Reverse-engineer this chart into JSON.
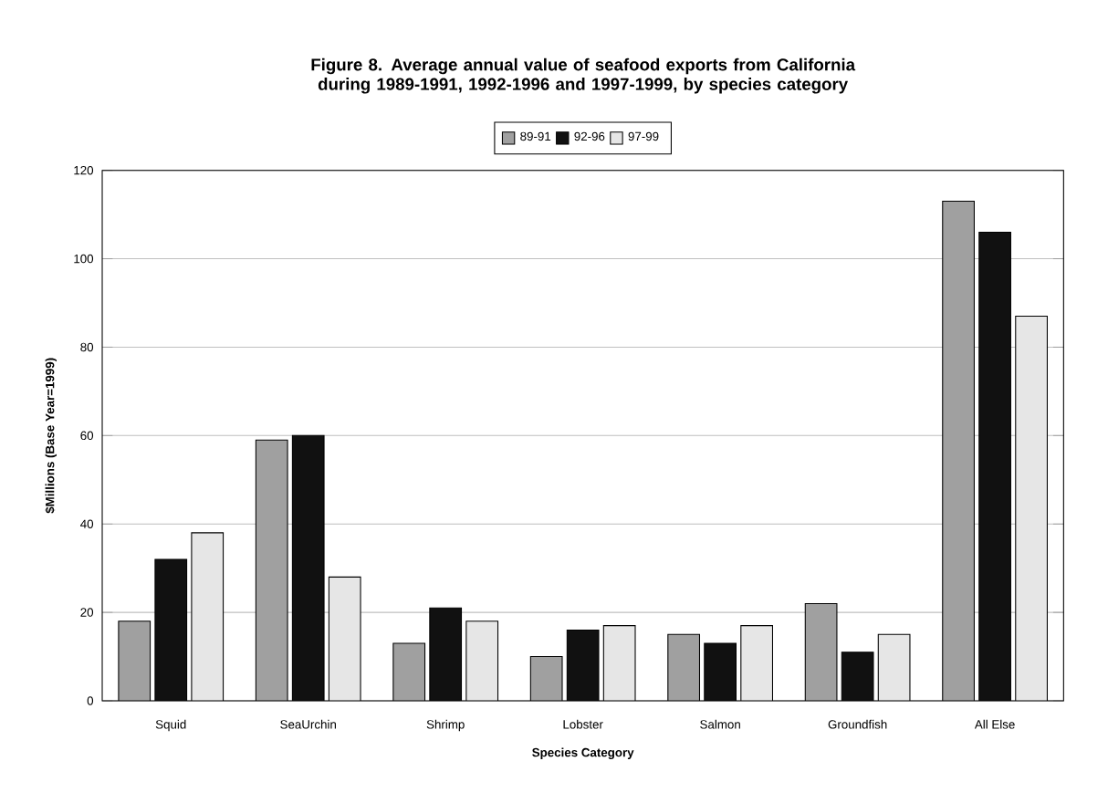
{
  "chart_data": {
    "type": "bar",
    "title": "Figure 8.  Average annual value of seafood exports from California during 1989-1991, 1992-1996 and 1997-1999, by species category",
    "xlabel": "Species Category",
    "ylabel": "$Millions (Base Year=1999)",
    "categories": [
      "Squid",
      "SeaUrchin",
      "Shrimp",
      "Lobster",
      "Salmon",
      "Groundfish",
      "All Else"
    ],
    "series": [
      {
        "name": "89-91",
        "color": "#a0a0a0",
        "values": [
          18,
          59,
          13,
          10,
          15,
          22,
          113
        ]
      },
      {
        "name": "92-96",
        "color": "#111111",
        "values": [
          32,
          60,
          21,
          16,
          13,
          11,
          106
        ]
      },
      {
        "name": "97-99",
        "color": "#e6e6e6",
        "values": [
          38,
          28,
          18,
          17,
          17,
          15,
          87
        ]
      }
    ],
    "ylim": [
      0,
      120
    ],
    "yticks": [
      0,
      20,
      40,
      60,
      80,
      100,
      120
    ],
    "grid": "y",
    "legend": "top"
  }
}
